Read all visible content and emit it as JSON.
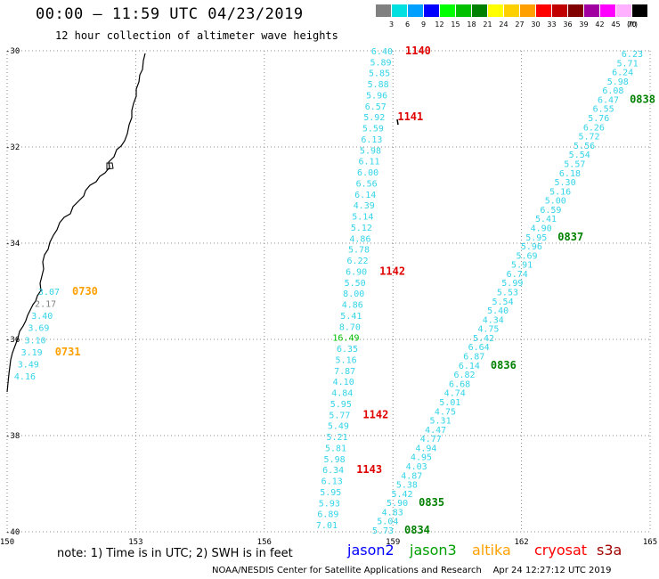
{
  "header": {
    "title": "00:00 – 11:59 UTC 04/23/2019",
    "subtitle": "12 hour collection of altimeter wave heights"
  },
  "scale": {
    "unit": "(ft)",
    "bins": [
      {
        "label": "3",
        "color": "#808080"
      },
      {
        "label": "6",
        "color": "#00e0e0"
      },
      {
        "label": "9",
        "color": "#00a0ff"
      },
      {
        "label": "12",
        "color": "#0000ff"
      },
      {
        "label": "15",
        "color": "#00ff00"
      },
      {
        "label": "18",
        "color": "#00c000"
      },
      {
        "label": "21",
        "color": "#008000"
      },
      {
        "label": "24",
        "color": "#ffff00"
      },
      {
        "label": "27",
        "color": "#ffd000"
      },
      {
        "label": "30",
        "color": "#ffa000"
      },
      {
        "label": "33",
        "color": "#ff0000"
      },
      {
        "label": "36",
        "color": "#c00000"
      },
      {
        "label": "39",
        "color": "#800000"
      },
      {
        "label": "42",
        "color": "#a000a0"
      },
      {
        "label": "45",
        "color": "#ff00ff"
      },
      {
        "label": "70",
        "color": "#ffb0ff"
      },
      {
        "label": "",
        "color": "#000000"
      }
    ]
  },
  "axes": {
    "lon_ticks": [
      "150",
      "153",
      "156",
      "159",
      "162",
      "165"
    ],
    "lat_ticks": [
      "-30",
      "-32",
      "-34",
      "-36",
      "-38",
      "-40"
    ]
  },
  "tracks": [
    {
      "satellite": "cryosat",
      "color": "#33d4e8",
      "values": [
        "6.40",
        "5.89",
        "5.85",
        "5.88",
        "5.96",
        "6.57",
        "5.92",
        "5.59",
        "6.13",
        "5.98",
        "6.11",
        "6.00",
        "6.56",
        "6.14",
        "4.39",
        "5.14",
        "5.12",
        "4.86",
        "5.78",
        "6.22",
        "6.90",
        "5.50",
        "8.00",
        "4.86",
        "5.41",
        "8.70",
        "16.49",
        "6.35",
        "5.16",
        "7.87",
        "4.10",
        "4.84",
        "5.95",
        "5.77",
        "5.49",
        "5.21",
        "5.81",
        "5.98",
        "6.34",
        "6.13",
        "5.95",
        "5.93",
        "6.89",
        "7.01"
      ],
      "times": [
        {
          "label": "1140",
          "color": "#e00000",
          "index": 0
        },
        {
          "label": "1141",
          "color": "#e00000",
          "index": 6
        },
        {
          "label": "1142",
          "color": "#e00000",
          "index": 20
        },
        {
          "label": "1142",
          "color": "#e00000",
          "index": 33
        },
        {
          "label": "1143",
          "color": "#e00000",
          "index": 38
        }
      ]
    },
    {
      "satellite": "jason3",
      "color": "#33d4e8",
      "values": [
        "6.23",
        "5.71",
        "6.24",
        "5.98",
        "6.08",
        "6.47",
        "6.55",
        "5.76",
        "6.26",
        "5.72",
        "5.56",
        "5.54",
        "5.57",
        "6.18",
        "5.30",
        "5.16",
        "5.00",
        "6.59",
        "5.41",
        "4.90",
        "5.95",
        "5.96",
        "5.69",
        "5.91",
        "6.74",
        "5.99",
        "5.53",
        "5.54",
        "5.40",
        "4.34",
        "4.75",
        "5.42",
        "6.64",
        "6.87",
        "6.14",
        "6.82",
        "6.68",
        "4.74",
        "5.01",
        "4.75",
        "5.31",
        "4.47",
        "4.77",
        "4.94",
        "4.95",
        "4.03",
        "4.87",
        "5.38",
        "5.42",
        "5.90",
        "4.83",
        "5.04",
        "5.73"
      ],
      "times": [
        {
          "label": "0838",
          "color": "#008000",
          "index": 5
        },
        {
          "label": "0837",
          "color": "#008000",
          "index": 20
        },
        {
          "label": "0836",
          "color": "#008000",
          "index": 34
        },
        {
          "label": "0835",
          "color": "#008000",
          "index": 49
        },
        {
          "label": "0834",
          "color": "#008000",
          "index": 52
        }
      ]
    },
    {
      "satellite": "altika",
      "color": "#33d4e8",
      "values": [
        "3.07",
        "2.17",
        "3.40",
        "3.69",
        "3.10",
        "3.19",
        "3.49",
        "4.16"
      ],
      "value_colors": [
        "#33d4e8",
        "#808080",
        "#33d4e8",
        "#33d4e8",
        "#33d4e8",
        "#33d4e8",
        "#33d4e8",
        "#33d4e8"
      ],
      "times": [
        {
          "label": "0730",
          "color": "#ffa000",
          "index": 0
        },
        {
          "label": "0731",
          "color": "#ffa000",
          "index": 5
        }
      ]
    }
  ],
  "highlight_value_color": "#00c000",
  "legend": {
    "note": "note:  1) Time is in UTC;  2) SWH is in feet",
    "satellites": [
      {
        "name": "jason2",
        "color": "#0000ff"
      },
      {
        "name": "jason3",
        "color": "#00a000"
      },
      {
        "name": "altika",
        "color": "#ffa000"
      },
      {
        "name": "cryosat",
        "color": "#ff0000"
      },
      {
        "name": "s3a",
        "color": "#a00000"
      }
    ]
  },
  "footer": {
    "credit": "NOAA/NESDIS Center for Satellite Applications and Research",
    "timestamp": "Apr 24 12:27:12 UTC 2019"
  }
}
